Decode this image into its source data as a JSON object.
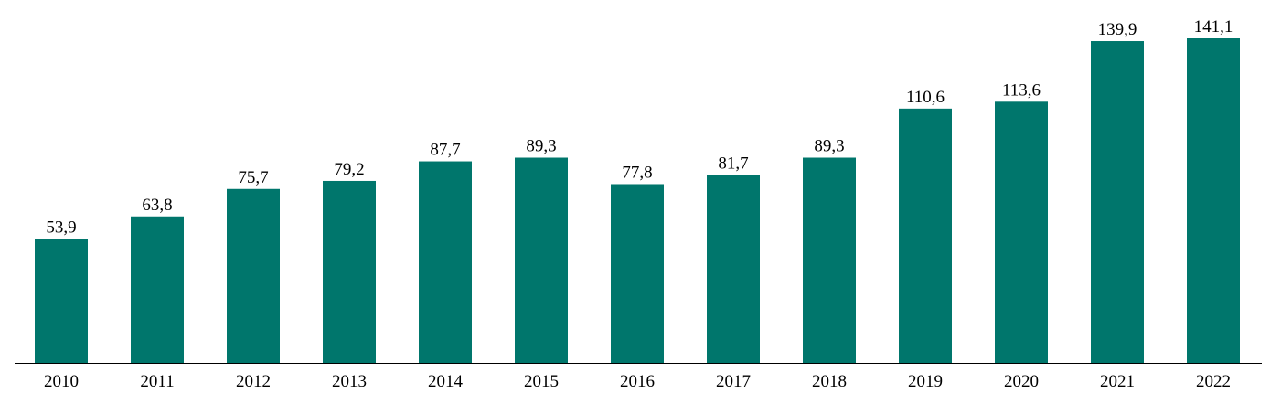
{
  "chart_data": {
    "type": "bar",
    "categories": [
      "2010",
      "2011",
      "2012",
      "2013",
      "2014",
      "2015",
      "2016",
      "2017",
      "2018",
      "2019",
      "2020",
      "2021",
      "2022"
    ],
    "values": [
      53.9,
      63.8,
      75.7,
      79.2,
      87.7,
      89.3,
      77.8,
      81.7,
      89.3,
      110.6,
      113.6,
      139.9,
      141.1
    ],
    "value_labels": [
      "53,9",
      "63,8",
      "75,7",
      "79,2",
      "87,7",
      "89,3",
      "77,8",
      "81,7",
      "89,3",
      "110,6",
      "113,6",
      "139,9",
      "141,1"
    ],
    "ylim": [
      0,
      141.1
    ],
    "grid": false,
    "legend": "none",
    "colors": {
      "bar": "#00766c",
      "axis": "#000000",
      "text": "#000000"
    }
  }
}
